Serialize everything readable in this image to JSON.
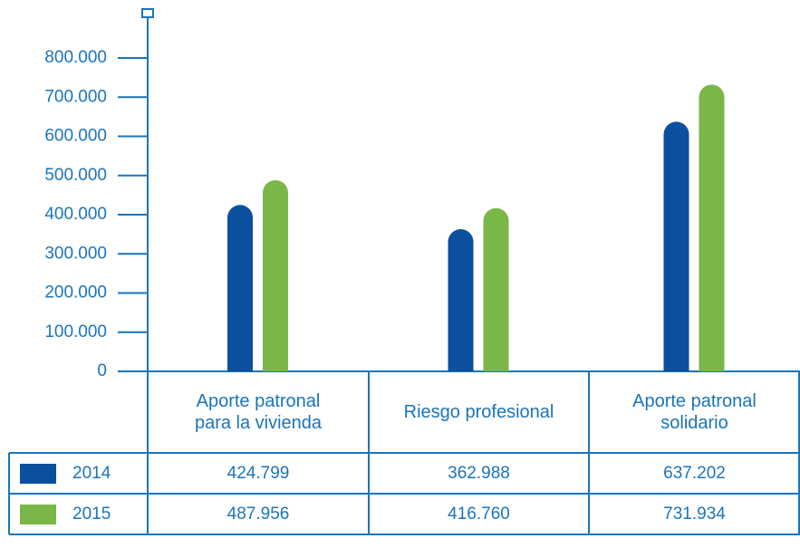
{
  "chart_data": {
    "type": "bar",
    "categories": [
      "Aporte patronal para la vivienda",
      "Riesgo profesional",
      "Aporte patronal solidario"
    ],
    "series": [
      {
        "name": "2014",
        "color": "#0b4f9f",
        "values": [
          424799,
          362988,
          637202
        ],
        "value_labels": [
          "424.799",
          "362.988",
          "637.202"
        ]
      },
      {
        "name": "2015",
        "color": "#7ab648",
        "values": [
          487956,
          416760,
          731934
        ],
        "value_labels": [
          "487.956",
          "416.760",
          "731.934"
        ]
      }
    ],
    "ylim": [
      0,
      800000
    ],
    "yticks": [
      0,
      {
        "value": 100000,
        "label": "100.000"
      },
      {
        "value": 200000,
        "label": "200.000"
      },
      {
        "value": 300000,
        "label": "300.000"
      },
      {
        "value": 400000,
        "label": "400.000"
      },
      {
        "value": 500000,
        "label": "500.000"
      },
      {
        "value": 600000,
        "label": "600.000"
      },
      {
        "value": 700000,
        "label": "700.000"
      },
      {
        "value": 800000,
        "label": "800.000"
      }
    ]
  }
}
